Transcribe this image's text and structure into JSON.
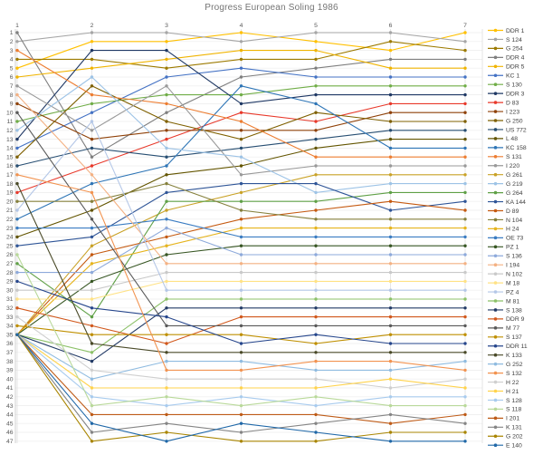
{
  "chart_data": {
    "type": "line",
    "variant": "bump-rank-progression",
    "title": "Progress European Soling 1986",
    "xlabel": "",
    "ylabel": "",
    "x_axis": {
      "position": "top",
      "ticks": [
        "1",
        "2",
        "3",
        "4",
        "5",
        "6",
        "7"
      ]
    },
    "y_axis": {
      "min": 1,
      "max": 47,
      "step": 1,
      "inverted": true
    },
    "grid": true,
    "legend_position": "right",
    "series": [
      {
        "name": "DDR 1",
        "color": "#FFC000",
        "positions": [
          5,
          2,
          2,
          1,
          2,
          3,
          1
        ]
      },
      {
        "name": "S 124",
        "color": "#A6A6A6",
        "positions": [
          2,
          1,
          1,
          2,
          1,
          1,
          2
        ]
      },
      {
        "name": "G 254",
        "color": "#9C7A00",
        "positions": [
          4,
          4,
          5,
          4,
          4,
          2,
          3
        ]
      },
      {
        "name": "DDR 4",
        "color": "#7F7F7F",
        "positions": [
          1,
          15,
          10,
          6,
          5,
          4,
          4
        ]
      },
      {
        "name": "DDR 5",
        "color": "#F0B400",
        "positions": [
          6,
          5,
          4,
          3,
          3,
          5,
          5
        ]
      },
      {
        "name": "KC 1",
        "color": "#4472C4",
        "positions": [
          14,
          10,
          6,
          5,
          6,
          6,
          6
        ]
      },
      {
        "name": "S 130",
        "color": "#70AD47",
        "positions": [
          11,
          9,
          8,
          8,
          7,
          7,
          7
        ]
      },
      {
        "name": "DDR 3",
        "color": "#1F3864",
        "positions": [
          13,
          3,
          3,
          9,
          8,
          8,
          8
        ]
      },
      {
        "name": "D 83",
        "color": "#E8392B",
        "positions": [
          19,
          16,
          13,
          10,
          11,
          9,
          9
        ]
      },
      {
        "name": "I 223",
        "color": "#8F4108",
        "positions": [
          9,
          13,
          12,
          12,
          12,
          10,
          10
        ]
      },
      {
        "name": "G 250",
        "color": "#7F6000",
        "positions": [
          15,
          7,
          11,
          13,
          10,
          11,
          11
        ]
      },
      {
        "name": "US 772",
        "color": "#274E72",
        "positions": [
          16,
          14,
          15,
          14,
          13,
          12,
          12
        ]
      },
      {
        "name": "L 48",
        "color": "#635500",
        "positions": [
          24,
          21,
          17,
          16,
          14,
          13,
          13
        ]
      },
      {
        "name": "KC 158",
        "color": "#2E75B6",
        "positions": [
          22,
          18,
          16,
          7,
          9,
          14,
          14
        ]
      },
      {
        "name": "S 131",
        "color": "#ED7D31",
        "positions": [
          3,
          8,
          9,
          11,
          15,
          15,
          15
        ]
      },
      {
        "name": "I 220",
        "color": "#999999",
        "positions": [
          7,
          12,
          7,
          17,
          16,
          16,
          16
        ]
      },
      {
        "name": "G 261",
        "color": "#C9A227",
        "positions": [
          35,
          25,
          21,
          19,
          17,
          17,
          17
        ]
      },
      {
        "name": "G 219",
        "color": "#9DC3E6",
        "positions": [
          12,
          6,
          14,
          15,
          19,
          18,
          18
        ]
      },
      {
        "name": "G 264",
        "color": "#5FA046",
        "positions": [
          27,
          33,
          20,
          20,
          20,
          19,
          19
        ]
      },
      {
        "name": "KA 144",
        "color": "#2F5597",
        "positions": [
          25,
          24,
          19,
          18,
          18,
          21,
          20
        ]
      },
      {
        "name": "D 89",
        "color": "#C55A11",
        "positions": [
          35,
          26,
          24,
          22,
          21,
          20,
          21
        ]
      },
      {
        "name": "N 104",
        "color": "#85803C",
        "positions": [
          20,
          20,
          18,
          21,
          22,
          22,
          22
        ]
      },
      {
        "name": "H 24",
        "color": "#E6B41E",
        "positions": [
          35,
          27,
          25,
          23,
          23,
          23,
          23
        ]
      },
      {
        "name": "OE 73",
        "color": "#3A7CC2",
        "positions": [
          23,
          23,
          22,
          24,
          24,
          24,
          24
        ]
      },
      {
        "name": "PZ 1",
        "color": "#375623",
        "positions": [
          35,
          29,
          26,
          25,
          25,
          25,
          25
        ]
      },
      {
        "name": "S 136",
        "color": "#8EAADB",
        "positions": [
          28,
          28,
          23,
          26,
          26,
          26,
          26
        ]
      },
      {
        "name": "I 194",
        "color": "#F4B183",
        "positions": [
          8,
          17,
          27,
          27,
          27,
          27,
          27
        ]
      },
      {
        "name": "N 102",
        "color": "#C9C9C9",
        "positions": [
          30,
          30,
          28,
          28,
          28,
          28,
          28
        ]
      },
      {
        "name": "M 18",
        "color": "#FFE285",
        "positions": [
          31,
          31,
          29,
          29,
          29,
          29,
          29
        ]
      },
      {
        "name": "PZ 4",
        "color": "#B4C7E7",
        "positions": [
          21,
          11,
          30,
          30,
          30,
          30,
          30
        ]
      },
      {
        "name": "M 81",
        "color": "#8CC168",
        "positions": [
          35,
          37,
          31,
          31,
          31,
          31,
          31
        ]
      },
      {
        "name": "S 138",
        "color": "#223A66",
        "positions": [
          35,
          38,
          32,
          32,
          32,
          32,
          32
        ]
      },
      {
        "name": "DDR 9",
        "color": "#D1581C",
        "positions": [
          32,
          34,
          36,
          33,
          33,
          33,
          33
        ]
      },
      {
        "name": "M 77",
        "color": "#595959",
        "positions": [
          10,
          22,
          34,
          34,
          34,
          34,
          34
        ]
      },
      {
        "name": "S 137",
        "color": "#BF8F00",
        "positions": [
          34,
          35,
          35,
          35,
          36,
          35,
          35
        ]
      },
      {
        "name": "DDR 11",
        "color": "#26468C",
        "positions": [
          29,
          32,
          33,
          36,
          35,
          36,
          36
        ]
      },
      {
        "name": "K 133",
        "color": "#4A4A28",
        "positions": [
          18,
          36,
          37,
          37,
          37,
          37,
          37
        ]
      },
      {
        "name": "G 252",
        "color": "#8FBBE0",
        "positions": [
          35,
          40,
          38,
          38,
          39,
          39,
          38
        ]
      },
      {
        "name": "S 132",
        "color": "#F29350",
        "positions": [
          17,
          19,
          39,
          39,
          38,
          38,
          39
        ]
      },
      {
        "name": "H 22",
        "color": "#CFCFCF",
        "positions": [
          33,
          39,
          40,
          40,
          40,
          41,
          40
        ]
      },
      {
        "name": "H 21",
        "color": "#FFD34D",
        "positions": [
          35,
          41,
          41,
          41,
          41,
          40,
          41
        ]
      },
      {
        "name": "S 128",
        "color": "#A8CBEE",
        "positions": [
          35,
          42,
          43,
          42,
          43,
          42,
          42
        ]
      },
      {
        "name": "S 118",
        "color": "#B9D99A",
        "positions": [
          26,
          43,
          42,
          43,
          42,
          43,
          43
        ]
      },
      {
        "name": "I 201",
        "color": "#BE5B17",
        "positions": [
          35,
          44,
          44,
          44,
          44,
          45,
          44
        ]
      },
      {
        "name": "K 131",
        "color": "#858585",
        "positions": [
          35,
          46,
          45,
          46,
          45,
          44,
          45
        ]
      },
      {
        "name": "G 202",
        "color": "#A98500",
        "positions": [
          35,
          47,
          46,
          47,
          47,
          46,
          46
        ]
      },
      {
        "name": "E 140",
        "color": "#2068A8",
        "positions": [
          35,
          45,
          47,
          45,
          46,
          47,
          47
        ]
      }
    ]
  }
}
